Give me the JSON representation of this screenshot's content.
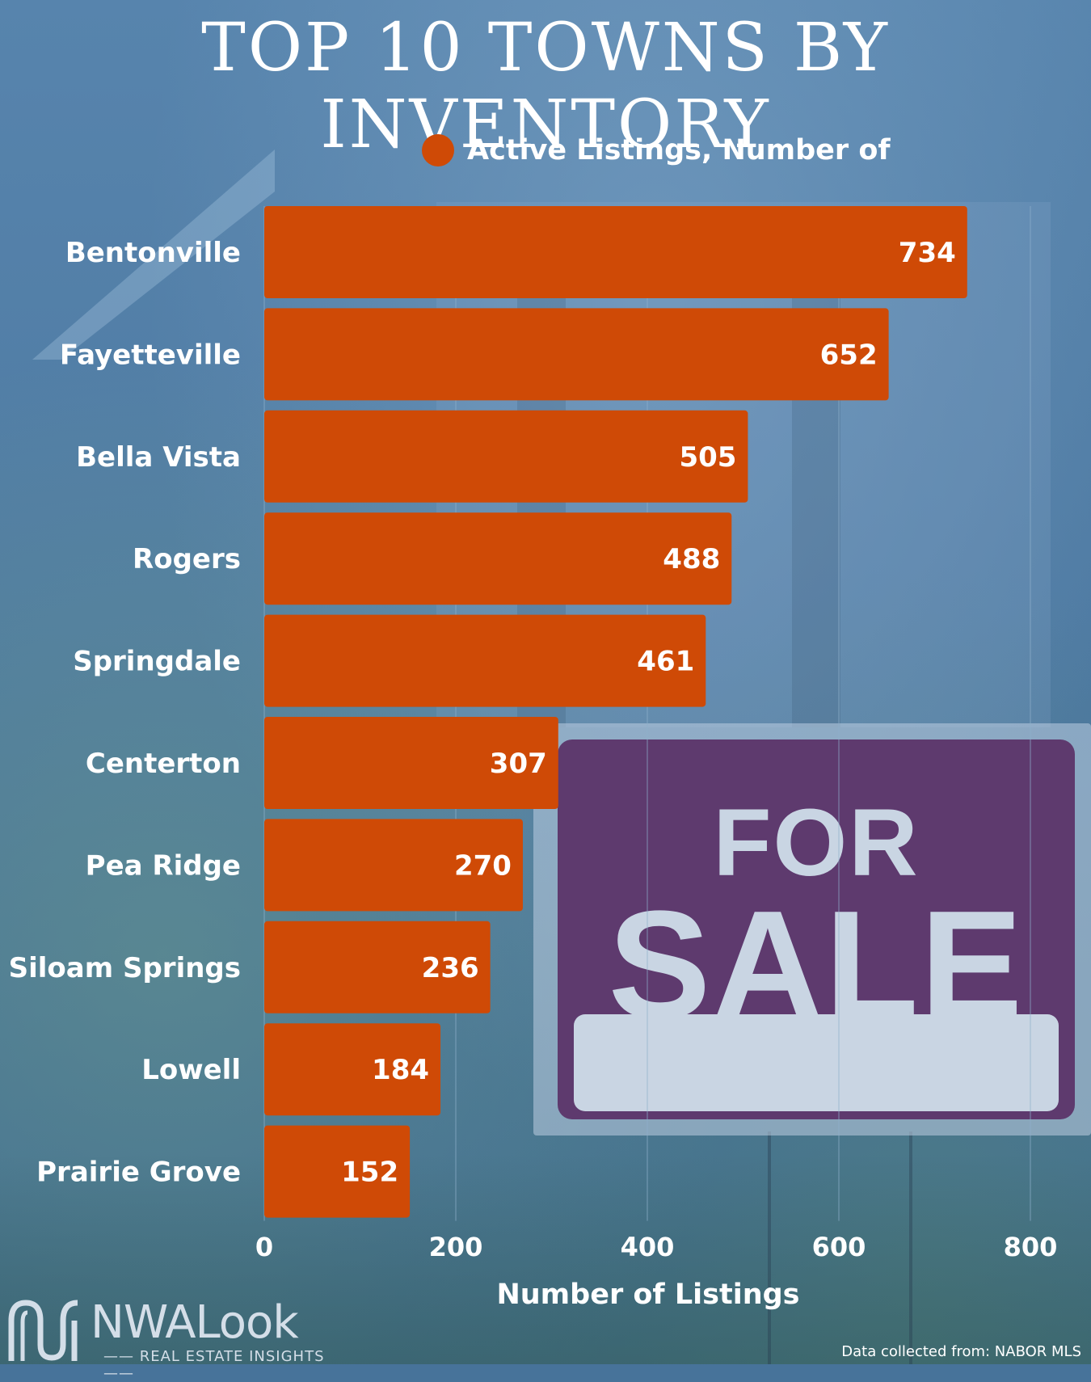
{
  "title": "TOP 10 TOWNS BY INVENTORY",
  "brand": {
    "name": "NWALook",
    "tagline": "REAL ESTATE INSIGHTS"
  },
  "source": "Data collected from: NABOR MLS",
  "colors": {
    "bar": "#cf4a06",
    "text": "#ffffff",
    "grid": "#8fb0cc"
  },
  "chart_data": {
    "type": "bar",
    "orientation": "horizontal",
    "legend": "Active Listings, Number of",
    "legend_position": "top",
    "categories": [
      "Bentonville",
      "Fayetteville",
      "Bella Vista",
      "Rogers",
      "Springdale",
      "Centerton",
      "Pea Ridge",
      "Siloam Springs",
      "Lowell",
      "Prairie Grove"
    ],
    "series": [
      {
        "name": "Active Listings, Number of",
        "values": [
          734,
          652,
          505,
          488,
          461,
          307,
          270,
          236,
          184,
          152
        ]
      }
    ],
    "xlabel": "Number of Listings",
    "xlim": [
      0,
      800
    ],
    "xticks": [
      "0",
      "200",
      "400",
      "600",
      "800"
    ],
    "grid": true
  }
}
